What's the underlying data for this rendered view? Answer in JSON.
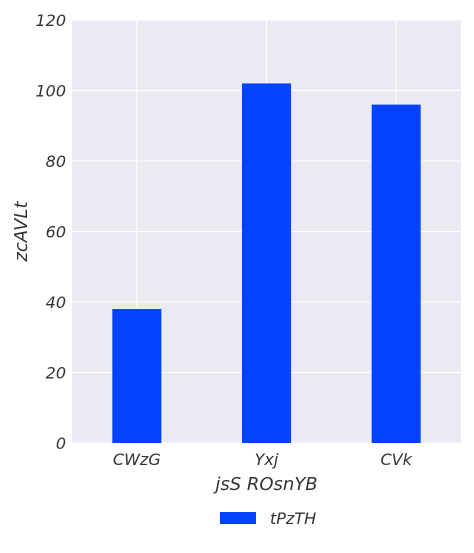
{
  "chart_data": {
    "type": "bar",
    "categories": [
      "CWzG",
      "Yxj",
      "CVk"
    ],
    "series": [
      {
        "name": "tPzTH",
        "values": [
          38,
          102,
          96
        ],
        "color": "#0343ff"
      }
    ],
    "title": "",
    "xlabel": "jsS ROsnYB",
    "ylabel": "zcAVLt",
    "ylim": [
      0,
      120
    ],
    "yticks": [
      0,
      20,
      40,
      60,
      80,
      100,
      120
    ],
    "grid": true,
    "legend_position": "bottom-center",
    "background_color": "#eaeaf2",
    "grid_color": "#ffffff"
  }
}
